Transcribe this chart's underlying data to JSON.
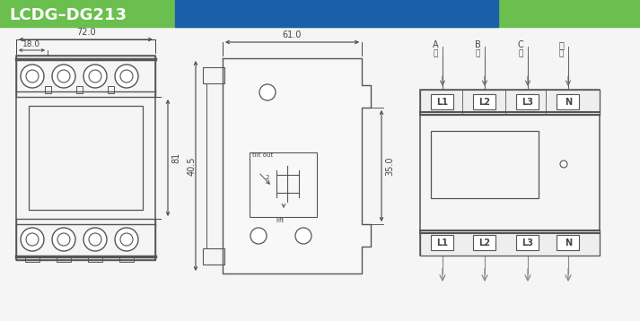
{
  "title": "LCDG–DG213",
  "header_green": "#6bbf4e",
  "header_blue": "#1a5fa8",
  "bg_color": "#f5f5f5",
  "line_color": "#555555",
  "dim_color": "#444444",
  "dim72": "72.0",
  "dim18": "18.0",
  "dim81": "81",
  "dim61": "61.0",
  "dim405": "40.5",
  "dim35": "35.0",
  "term_labels": [
    "L1",
    "L2",
    "L3",
    "N"
  ],
  "phase_labels": [
    "A",
    "B",
    "C",
    "零"
  ],
  "phase_sub": [
    "相",
    "相",
    "相",
    "线"
  ]
}
